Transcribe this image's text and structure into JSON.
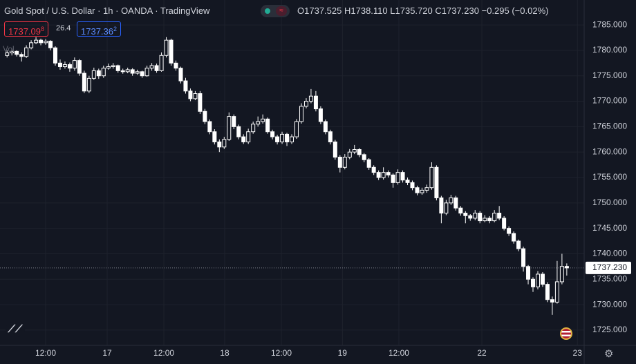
{
  "header": {
    "title": "Gold Spot / U.S. Dollar · 1h · OANDA · TradingView",
    "open": {
      "label": "O",
      "value": "1737.525"
    },
    "high": {
      "label": "H",
      "value": "1738.110"
    },
    "low": {
      "label": "L",
      "value": "1735.720"
    },
    "close": {
      "label": "C",
      "value": "1737.230"
    },
    "change": "−0.295 (−0.02%)",
    "sell": {
      "main": "1737.09",
      "sup": "8"
    },
    "spread": "26.4",
    "buy": {
      "main": "1737.36",
      "sup": "2"
    },
    "vol": "Vol"
  },
  "chart_data": {
    "type": "candlestick",
    "color": "#ffffff",
    "grid": true,
    "ylim": [
      1722.0,
      1789.9
    ],
    "yticks": [
      {
        "value": 1725,
        "label": "1725.000"
      },
      {
        "value": 1730,
        "label": "1730.000"
      },
      {
        "value": 1735,
        "label": "1735.000"
      },
      {
        "value": 1740,
        "label": "1740.000"
      },
      {
        "value": 1745,
        "label": "1745.000"
      },
      {
        "value": 1750,
        "label": "1750.000"
      },
      {
        "value": 1755,
        "label": "1755.000"
      },
      {
        "value": 1760,
        "label": "1760.000"
      },
      {
        "value": 1765,
        "label": "1765.000"
      },
      {
        "value": 1770,
        "label": "1770.000"
      },
      {
        "value": 1775,
        "label": "1775.000"
      },
      {
        "value": 1780,
        "label": "1780.000"
      },
      {
        "value": 1785,
        "label": "1785.000"
      }
    ],
    "xlim": [
      -1.46,
      119.6
    ],
    "xticks": [
      {
        "value": 8,
        "label": "12:00"
      },
      {
        "value": 20.75,
        "label": "17"
      },
      {
        "value": 32.5,
        "label": "12:00"
      },
      {
        "value": 45.1,
        "label": "18"
      },
      {
        "value": 56.85,
        "label": "12:00"
      },
      {
        "value": 69.5,
        "label": "19"
      },
      {
        "value": 81.2,
        "label": "12:00"
      },
      {
        "value": 98.4,
        "label": "22"
      },
      {
        "value": 118.2,
        "label": "23"
      }
    ],
    "last_price": {
      "value": 1737.23,
      "label": "1737.230"
    },
    "candles": [
      [
        1779.0,
        1780.0,
        1778.6,
        1779.5
      ],
      [
        1779.5,
        1780.3,
        1779.0,
        1779.8
      ],
      [
        1779.8,
        1780.0,
        1778.8,
        1779.2
      ],
      [
        1779.2,
        1779.6,
        1777.8,
        1778.8
      ],
      [
        1778.8,
        1781.0,
        1778.5,
        1780.5
      ],
      [
        1780.5,
        1782.0,
        1780.2,
        1781.5
      ],
      [
        1781.5,
        1782.6,
        1781.2,
        1782.0
      ],
      [
        1782.0,
        1782.3,
        1781.0,
        1781.5
      ],
      [
        1781.5,
        1782.2,
        1781.1,
        1781.8
      ],
      [
        1781.8,
        1782.0,
        1780.0,
        1780.5
      ],
      [
        1780.5,
        1780.8,
        1777.0,
        1777.5
      ],
      [
        1777.5,
        1778.2,
        1776.2,
        1776.8
      ],
      [
        1776.8,
        1777.8,
        1776.4,
        1777.2
      ],
      [
        1777.2,
        1777.6,
        1775.8,
        1776.5
      ],
      [
        1776.5,
        1778.6,
        1776.0,
        1778.0
      ],
      [
        1778.0,
        1778.3,
        1775.0,
        1775.5
      ],
      [
        1775.5,
        1776.0,
        1771.6,
        1772.0
      ],
      [
        1772.0,
        1775.0,
        1771.6,
        1774.5
      ],
      [
        1774.5,
        1776.6,
        1774.2,
        1776.0
      ],
      [
        1776.0,
        1776.4,
        1774.4,
        1775.0
      ],
      [
        1775.0,
        1777.0,
        1774.6,
        1776.5
      ],
      [
        1776.5,
        1777.4,
        1776.2,
        1776.8
      ],
      [
        1776.8,
        1777.5,
        1776.4,
        1777.0
      ],
      [
        1777.0,
        1777.2,
        1775.6,
        1776.0
      ],
      [
        1776.0,
        1776.4,
        1775.4,
        1775.8
      ],
      [
        1775.8,
        1776.6,
        1775.5,
        1776.2
      ],
      [
        1776.2,
        1776.5,
        1775.0,
        1775.5
      ],
      [
        1775.5,
        1776.2,
        1775.2,
        1775.8
      ],
      [
        1775.8,
        1776.0,
        1774.6,
        1775.0
      ],
      [
        1775.0,
        1777.0,
        1774.8,
        1776.5
      ],
      [
        1776.5,
        1777.5,
        1776.0,
        1777.0
      ],
      [
        1777.0,
        1777.4,
        1775.6,
        1776.0
      ],
      [
        1776.0,
        1779.6,
        1775.8,
        1779.0
      ],
      [
        1779.0,
        1782.6,
        1778.6,
        1782.0
      ],
      [
        1782.0,
        1782.3,
        1777.0,
        1777.5
      ],
      [
        1777.5,
        1778.0,
        1776.0,
        1776.5
      ],
      [
        1776.5,
        1776.8,
        1773.5,
        1774.0
      ],
      [
        1774.0,
        1774.6,
        1771.5,
        1772.0
      ],
      [
        1772.0,
        1772.5,
        1770.0,
        1770.5
      ],
      [
        1770.5,
        1772.0,
        1770.2,
        1771.5
      ],
      [
        1771.5,
        1772.0,
        1767.5,
        1768.0
      ],
      [
        1768.0,
        1768.5,
        1765.5,
        1766.0
      ],
      [
        1766.0,
        1766.4,
        1763.5,
        1764.0
      ],
      [
        1764.0,
        1764.5,
        1761.5,
        1762.0
      ],
      [
        1762.0,
        1762.5,
        1760.0,
        1761.0
      ],
      [
        1761.0,
        1763.0,
        1760.6,
        1762.5
      ],
      [
        1762.5,
        1767.8,
        1762.2,
        1767.0
      ],
      [
        1767.0,
        1767.4,
        1764.5,
        1765.0
      ],
      [
        1765.0,
        1765.4,
        1762.5,
        1763.0
      ],
      [
        1763.0,
        1763.5,
        1761.6,
        1762.0
      ],
      [
        1762.0,
        1764.6,
        1761.6,
        1764.0
      ],
      [
        1764.0,
        1766.0,
        1763.6,
        1765.5
      ],
      [
        1765.5,
        1767.0,
        1765.0,
        1766.0
      ],
      [
        1766.0,
        1767.4,
        1765.6,
        1766.5
      ],
      [
        1766.5,
        1766.8,
        1763.6,
        1764.0
      ],
      [
        1764.0,
        1764.4,
        1762.5,
        1763.0
      ],
      [
        1763.0,
        1763.4,
        1761.5,
        1762.0
      ],
      [
        1762.0,
        1764.0,
        1761.6,
        1763.5
      ],
      [
        1763.5,
        1763.8,
        1761.2,
        1762.0
      ],
      [
        1762.0,
        1763.5,
        1761.6,
        1763.0
      ],
      [
        1763.0,
        1766.5,
        1762.6,
        1766.0
      ],
      [
        1766.0,
        1769.6,
        1765.6,
        1769.0
      ],
      [
        1769.0,
        1770.6,
        1768.6,
        1770.0
      ],
      [
        1770.0,
        1772.4,
        1769.6,
        1771.0
      ],
      [
        1771.0,
        1772.0,
        1768.0,
        1768.5
      ],
      [
        1768.5,
        1769.0,
        1765.5,
        1766.0
      ],
      [
        1766.0,
        1766.4,
        1763.5,
        1764.0
      ],
      [
        1764.0,
        1764.4,
        1761.5,
        1762.0
      ],
      [
        1762.0,
        1762.4,
        1758.5,
        1759.0
      ],
      [
        1759.0,
        1759.4,
        1756.0,
        1757.0
      ],
      [
        1757.0,
        1759.6,
        1756.6,
        1759.0
      ],
      [
        1759.0,
        1760.6,
        1758.6,
        1760.0
      ],
      [
        1760.0,
        1761.4,
        1759.6,
        1760.5
      ],
      [
        1760.5,
        1760.8,
        1759.0,
        1759.5
      ],
      [
        1759.5,
        1759.8,
        1758.0,
        1758.5
      ],
      [
        1758.5,
        1758.8,
        1756.5,
        1757.0
      ],
      [
        1757.0,
        1757.4,
        1755.5,
        1756.0
      ],
      [
        1756.0,
        1756.4,
        1754.5,
        1755.0
      ],
      [
        1755.0,
        1757.0,
        1754.6,
        1756.0
      ],
      [
        1756.0,
        1756.4,
        1755.0,
        1755.5
      ],
      [
        1755.5,
        1755.8,
        1753.0,
        1754.0
      ],
      [
        1754.0,
        1756.6,
        1753.6,
        1756.0
      ],
      [
        1756.0,
        1756.4,
        1754.0,
        1754.5
      ],
      [
        1754.5,
        1755.0,
        1753.5,
        1754.0
      ],
      [
        1754.0,
        1754.4,
        1752.5,
        1753.0
      ],
      [
        1753.0,
        1753.4,
        1751.5,
        1752.0
      ],
      [
        1752.0,
        1753.0,
        1751.6,
        1752.5
      ],
      [
        1752.5,
        1753.6,
        1752.0,
        1753.0
      ],
      [
        1753.0,
        1758.0,
        1752.6,
        1757.0
      ],
      [
        1757.0,
        1757.4,
        1750.5,
        1751.0
      ],
      [
        1751.0,
        1751.4,
        1746.0,
        1748.0
      ],
      [
        1748.0,
        1750.6,
        1747.6,
        1750.0
      ],
      [
        1750.0,
        1751.6,
        1749.6,
        1751.0
      ],
      [
        1751.0,
        1751.4,
        1748.5,
        1749.0
      ],
      [
        1749.0,
        1749.4,
        1747.5,
        1748.0
      ],
      [
        1748.0,
        1748.4,
        1746.0,
        1747.5
      ],
      [
        1747.5,
        1747.8,
        1746.5,
        1747.0
      ],
      [
        1747.0,
        1748.6,
        1746.6,
        1748.0
      ],
      [
        1748.0,
        1748.4,
        1746.0,
        1746.5
      ],
      [
        1746.5,
        1747.6,
        1746.2,
        1747.0
      ],
      [
        1747.0,
        1747.4,
        1746.0,
        1746.5
      ],
      [
        1746.5,
        1748.6,
        1746.2,
        1748.0
      ],
      [
        1748.0,
        1749.4,
        1746.6,
        1747.0
      ],
      [
        1747.0,
        1747.4,
        1744.6,
        1745.0
      ],
      [
        1745.0,
        1745.4,
        1743.5,
        1744.0
      ],
      [
        1744.0,
        1744.4,
        1742.0,
        1742.5
      ],
      [
        1742.5,
        1742.8,
        1740.5,
        1741.0
      ],
      [
        1741.0,
        1741.4,
        1736.5,
        1737.5
      ],
      [
        1737.5,
        1737.8,
        1734.0,
        1735.0
      ],
      [
        1735.0,
        1735.4,
        1732.5,
        1733.5
      ],
      [
        1733.5,
        1736.6,
        1733.0,
        1736.0
      ],
      [
        1736.0,
        1736.4,
        1733.5,
        1734.0
      ],
      [
        1734.0,
        1734.4,
        1730.5,
        1731.0
      ],
      [
        1731.0,
        1731.6,
        1728.0,
        1730.5
      ],
      [
        1730.5,
        1738.6,
        1730.2,
        1734.5
      ],
      [
        1734.5,
        1740.0,
        1734.0,
        1737.525
      ],
      [
        1737.525,
        1738.11,
        1735.72,
        1737.23
      ]
    ]
  }
}
